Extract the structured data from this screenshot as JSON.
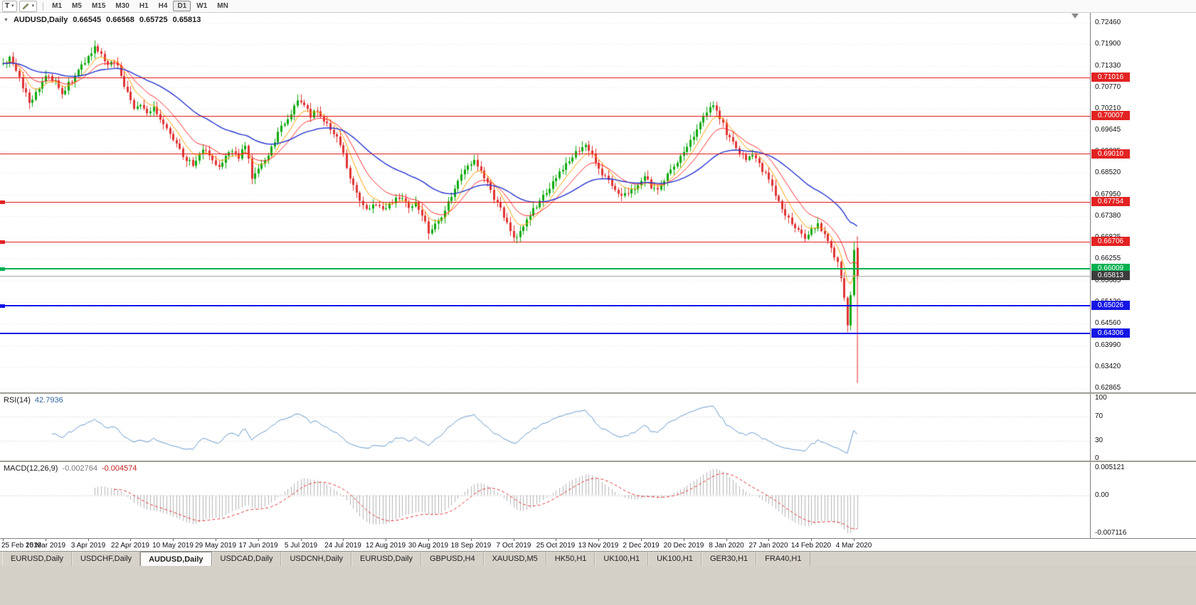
{
  "icons": {
    "collapse": "▼",
    "dropdown": "▾"
  },
  "toolbar": {
    "text_tool_label": "T",
    "timeframes": [
      "M1",
      "M5",
      "M15",
      "M30",
      "H1",
      "H4",
      "D1",
      "W1",
      "MN"
    ],
    "active_timeframe": "D1"
  },
  "chart": {
    "title": "AUDUSD,Daily",
    "ohlc": {
      "open": "0.66545",
      "high": "0.66568",
      "low": "0.65725",
      "close": "0.65813"
    },
    "price_axis_ticks": [
      "0.72460",
      "0.71900",
      "0.71330",
      "0.70770",
      "0.70210",
      "0.69645",
      "0.69085",
      "0.68520",
      "0.67950",
      "0.67380",
      "0.66825",
      "0.66255",
      "0.65685",
      "0.65120",
      "0.64560",
      "0.63990",
      "0.63420",
      "0.62865"
    ],
    "hlines": [
      {
        "label": "0.71016",
        "price": 0.71016,
        "color": "#e32222",
        "weight": 1,
        "left_marker": false,
        "badge_bg": "#e32222"
      },
      {
        "label": "0.70007",
        "price": 0.70007,
        "color": "#e32222",
        "weight": 1,
        "left_marker": false,
        "badge_bg": "#e32222"
      },
      {
        "label": "0.69010",
        "price": 0.6901,
        "color": "#e32222",
        "weight": 1,
        "left_marker": false,
        "badge_bg": "#e32222"
      },
      {
        "label": "0.67754",
        "price": 0.67754,
        "color": "#e32222",
        "weight": 1,
        "left_marker": true,
        "badge_bg": "#e32222"
      },
      {
        "label": "0.66706",
        "price": 0.66706,
        "color": "#e32222",
        "weight": 1,
        "left_marker": true,
        "badge_bg": "#e32222"
      },
      {
        "label": "0.66009",
        "price": 0.66009,
        "color": "#00b050",
        "weight": 2,
        "left_marker": true,
        "badge_bg": "#00b050"
      },
      {
        "label": "0.65813",
        "price": 0.65813,
        "color": "#a8a8a8",
        "weight": 1,
        "left_marker": false,
        "badge_bg": "#3c3c3c",
        "current": true
      },
      {
        "label": "0.65026",
        "price": 0.65026,
        "color": "#1515e6",
        "weight": 2,
        "left_marker": true,
        "badge_bg": "#1515e6"
      },
      {
        "label": "0.64306",
        "price": 0.64306,
        "color": "#1515e6",
        "weight": 2,
        "left_marker": false,
        "badge_bg": "#1515e6"
      }
    ],
    "vline": {
      "bar": 261,
      "price_from": 0.6685,
      "price_to": 0.63,
      "color": "#e32222"
    }
  },
  "chart_data": {
    "type": "candlestick",
    "symbol": "AUDUSD",
    "period": "Daily",
    "price_range": [
      0.62865,
      0.7246
    ],
    "bars_total": 262,
    "close_path": [
      [
        0,
        0.7138
      ],
      [
        2,
        0.7152
      ],
      [
        4,
        0.7118
      ],
      [
        6,
        0.708
      ],
      [
        8,
        0.704
      ],
      [
        10,
        0.7058
      ],
      [
        12,
        0.709
      ],
      [
        14,
        0.7112
      ],
      [
        16,
        0.7088
      ],
      [
        18,
        0.7062
      ],
      [
        20,
        0.7085
      ],
      [
        22,
        0.7108
      ],
      [
        24,
        0.713
      ],
      [
        26,
        0.7158
      ],
      [
        28,
        0.7186
      ],
      [
        30,
        0.7165
      ],
      [
        32,
        0.7135
      ],
      [
        34,
        0.7148
      ],
      [
        36,
        0.711
      ],
      [
        38,
        0.706
      ],
      [
        40,
        0.7022
      ],
      [
        42,
        0.7035
      ],
      [
        44,
        0.701
      ],
      [
        46,
        0.7025
      ],
      [
        48,
        0.6995
      ],
      [
        50,
        0.6965
      ],
      [
        52,
        0.694
      ],
      [
        54,
        0.6912
      ],
      [
        56,
        0.6888
      ],
      [
        58,
        0.687
      ],
      [
        60,
        0.6898
      ],
      [
        62,
        0.6915
      ],
      [
        64,
        0.688
      ],
      [
        66,
        0.6862
      ],
      [
        68,
        0.689
      ],
      [
        70,
        0.6912
      ],
      [
        72,
        0.6895
      ],
      [
        74,
        0.693
      ],
      [
        76,
        0.6838
      ],
      [
        78,
        0.6862
      ],
      [
        80,
        0.6885
      ],
      [
        82,
        0.692
      ],
      [
        84,
        0.6958
      ],
      [
        86,
        0.6985
      ],
      [
        88,
        0.7012
      ],
      [
        90,
        0.7042
      ],
      [
        92,
        0.703
      ],
      [
        94,
        0.6998
      ],
      [
        96,
        0.7018
      ],
      [
        98,
        0.6992
      ],
      [
        100,
        0.697
      ],
      [
        102,
        0.6945
      ],
      [
        104,
        0.69
      ],
      [
        106,
        0.6842
      ],
      [
        108,
        0.6795
      ],
      [
        110,
        0.677
      ],
      [
        112,
        0.6758
      ],
      [
        114,
        0.6772
      ],
      [
        116,
        0.675
      ],
      [
        118,
        0.6768
      ],
      [
        120,
        0.678
      ],
      [
        122,
        0.6788
      ],
      [
        124,
        0.6762
      ],
      [
        126,
        0.6772
      ],
      [
        128,
        0.6742
      ],
      [
        130,
        0.6695
      ],
      [
        132,
        0.6718
      ],
      [
        134,
        0.6735
      ],
      [
        136,
        0.6772
      ],
      [
        138,
        0.6812
      ],
      [
        140,
        0.6848
      ],
      [
        142,
        0.6872
      ],
      [
        144,
        0.6882
      ],
      [
        146,
        0.6855
      ],
      [
        148,
        0.6822
      ],
      [
        150,
        0.6788
      ],
      [
        152,
        0.6755
      ],
      [
        154,
        0.6718
      ],
      [
        156,
        0.6678
      ],
      [
        158,
        0.6702
      ],
      [
        160,
        0.6732
      ],
      [
        162,
        0.6758
      ],
      [
        164,
        0.6778
      ],
      [
        166,
        0.6802
      ],
      [
        168,
        0.6828
      ],
      [
        170,
        0.6852
      ],
      [
        172,
        0.6872
      ],
      [
        174,
        0.6892
      ],
      [
        176,
        0.6915
      ],
      [
        178,
        0.6928
      ],
      [
        180,
        0.6902
      ],
      [
        182,
        0.6862
      ],
      [
        184,
        0.6838
      ],
      [
        186,
        0.6818
      ],
      [
        188,
        0.6802
      ],
      [
        190,
        0.6792
      ],
      [
        192,
        0.6805
      ],
      [
        194,
        0.6822
      ],
      [
        196,
        0.6842
      ],
      [
        198,
        0.6818
      ],
      [
        200,
        0.6802
      ],
      [
        202,
        0.6832
      ],
      [
        204,
        0.6858
      ],
      [
        206,
        0.6882
      ],
      [
        208,
        0.6902
      ],
      [
        210,
        0.6932
      ],
      [
        212,
        0.6962
      ],
      [
        214,
        0.6995
      ],
      [
        216,
        0.7025
      ],
      [
        217,
        0.7032
      ],
      [
        219,
        0.6995
      ],
      [
        221,
        0.6958
      ],
      [
        223,
        0.6928
      ],
      [
        225,
        0.6902
      ],
      [
        227,
        0.6888
      ],
      [
        229,
        0.6898
      ],
      [
        231,
        0.6872
      ],
      [
        233,
        0.6848
      ],
      [
        235,
        0.6812
      ],
      [
        237,
        0.6778
      ],
      [
        239,
        0.6742
      ],
      [
        241,
        0.6718
      ],
      [
        243,
        0.6698
      ],
      [
        245,
        0.6682
      ],
      [
        247,
        0.6702
      ],
      [
        249,
        0.6716
      ],
      [
        251,
        0.6695
      ],
      [
        253,
        0.6658
      ],
      [
        255,
        0.6612
      ],
      [
        256,
        0.6575
      ],
      [
        257,
        0.6525
      ],
      [
        258,
        0.6455
      ],
      [
        259,
        0.6525
      ],
      [
        260,
        0.665
      ],
      [
        261,
        0.65813
      ]
    ],
    "spikes": [
      {
        "i": 28,
        "high": 0.7196
      },
      {
        "i": 76,
        "low": 0.6832
      },
      {
        "i": 91,
        "high": 0.7058
      },
      {
        "i": 130,
        "low": 0.6677
      },
      {
        "i": 156,
        "low": 0.6671
      },
      {
        "i": 217,
        "high": 0.704
      },
      {
        "i": 258,
        "low": 0.6433
      },
      {
        "i": 260,
        "high": 0.667
      }
    ],
    "last_bar": {
      "o": 0.66545,
      "h": 0.66568,
      "l": 0.65725,
      "c": 0.65813
    },
    "date_labels": [
      "25 Feb 2019",
      "15 Mar 2019",
      "3 Apr 2019",
      "22 Apr 2019",
      "10 May 2019",
      "29 May 2019",
      "17 Jun 2019",
      "5 Jul 2019",
      "24 Jul 2019",
      "12 Aug 2019",
      "30 Aug 2019",
      "18 Sep 2019",
      "7 Oct 2019",
      "25 Oct 2019",
      "13 Nov 2019",
      "2 Dec 2019",
      "20 Dec 2019",
      "8 Jan 2020",
      "27 Jan 2020",
      "14 Feb 2020",
      "4 Mar 2020"
    ],
    "date_label_indices": [
      0,
      13,
      26,
      39,
      52,
      65,
      78,
      91,
      104,
      117,
      130,
      143,
      156,
      169,
      182,
      195,
      208,
      221,
      234,
      247,
      260
    ],
    "up_color": "#0caa0c",
    "down_color": "#e03232",
    "moving_averages": [
      {
        "period": 7,
        "color": "#ff9e00"
      },
      {
        "period": 14,
        "color": "#ff2a2a"
      },
      {
        "period": 40,
        "color": "#2333d0"
      }
    ]
  },
  "rsi": {
    "label": "RSI(14)",
    "value": "42.7936",
    "period": 14,
    "color": "#6699cc",
    "axis_ticks": [
      "100",
      "70",
      "30",
      "0"
    ],
    "levels": [
      70,
      30
    ]
  },
  "macd": {
    "label": "MACD(12,26,9)",
    "value_main": "-0.002764",
    "value_signal": "-0.004574",
    "fast": 12,
    "slow": 26,
    "signal": 9,
    "histogram_color": "#b5b5b5",
    "signal_color": "#e03232",
    "axis_ticks": [
      "0.005121",
      "0.00",
      "-0.007116"
    ]
  },
  "tabs": {
    "items": [
      "EURUSD,Daily",
      "USDCHF,Daily",
      "AUDUSD,Daily",
      "USDCAD,Daily",
      "USDCNH,Daily",
      "EURUSD,Daily",
      "GBPUSD,H4",
      "XAUUSD,M5",
      "HK50,H1",
      "UK100,H1",
      "UK100,H1",
      "GER30,H1",
      "FRA40,H1"
    ],
    "active_index": 2
  }
}
